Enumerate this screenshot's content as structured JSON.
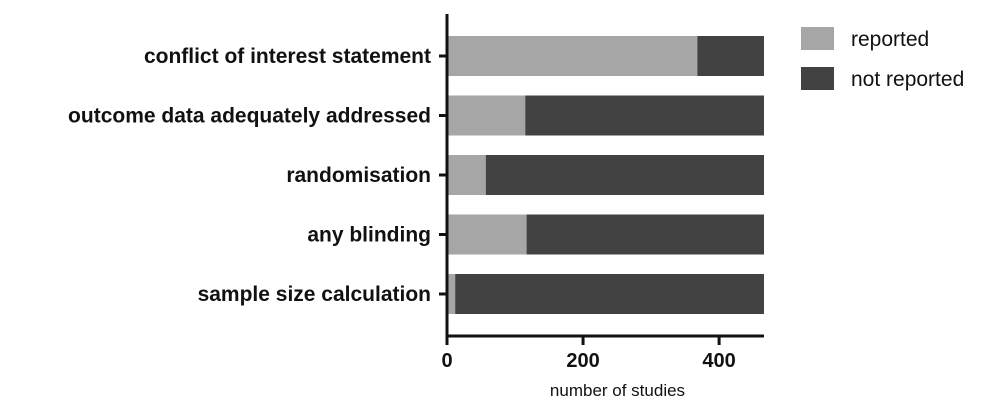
{
  "chart_data": {
    "type": "bar",
    "orientation": "horizontal",
    "stacked": true,
    "categories": [
      "conflict of interest statement",
      "outcome data adequately addressed",
      "randomisation",
      "any blinding",
      "sample size calculation"
    ],
    "series": [
      {
        "name": "reported",
        "color": "#a6a6a6",
        "values": [
          368,
          115,
          57,
          117,
          12
        ]
      },
      {
        "name": "not reported",
        "color": "#424242",
        "values": [
          98,
          351,
          409,
          349,
          454
        ]
      }
    ],
    "xlabel": "number of studies",
    "ylabel": "",
    "xlim": [
      0,
      466
    ],
    "xticks": [
      0,
      200,
      400
    ],
    "grid": false,
    "legend_position": "top-right"
  }
}
